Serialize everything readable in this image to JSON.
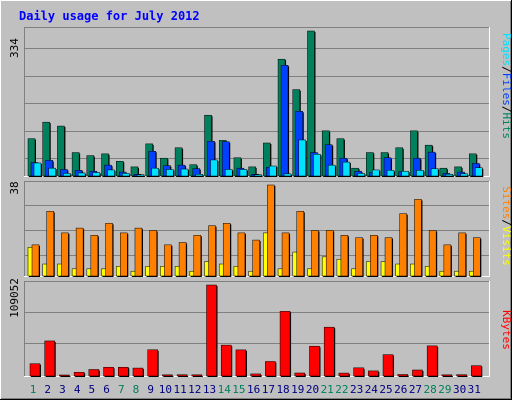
{
  "title": "Daily usage for July 2012",
  "colors": {
    "hits": "#00805C",
    "files": "#0040FF",
    "pages": "#00E0FF",
    "visits": "#FFFF00",
    "sites": "#FF8000",
    "kbytes": "#FF0000",
    "weekend_day_label": "#00805C",
    "weekday_label": "#000080",
    "background": "#C0C0C0"
  },
  "labels": {
    "hits": "Hits",
    "files": "Files",
    "pages": "Pages",
    "visits": "Visits",
    "sites": "Sites",
    "kbytes": "KBytes",
    "sep": "/"
  },
  "chart_data": [
    {
      "type": "bar",
      "title": "Daily usage for July 2012",
      "categories": [
        "1",
        "2",
        "3",
        "4",
        "5",
        "6",
        "7",
        "8",
        "9",
        "10",
        "11",
        "12",
        "13",
        "14",
        "15",
        "16",
        "17",
        "18",
        "19",
        "20",
        "21",
        "22",
        "23",
        "24",
        "25",
        "26",
        "27",
        "28",
        "29",
        "30",
        "31"
      ],
      "weekend_days": [
        1,
        7,
        8,
        14,
        15,
        21,
        22,
        28,
        29
      ],
      "ylim": [
        0,
        334
      ],
      "max_label": "334",
      "series": [
        {
          "name": "Hits",
          "values": [
            86,
            124,
            115,
            54,
            47,
            51,
            34,
            21,
            74,
            41,
            65,
            26,
            140,
            82,
            42,
            21,
            76,
            269,
            199,
            334,
            104,
            86,
            18,
            54,
            54,
            65,
            104,
            71,
            18,
            21,
            51
          ]
        },
        {
          "name": "Files",
          "values": [
            31,
            36,
            15,
            13,
            11,
            25,
            9,
            4,
            57,
            24,
            25,
            17,
            80,
            79,
            18,
            4,
            20,
            255,
            149,
            54,
            72,
            41,
            11,
            8,
            42,
            10,
            41,
            55,
            6,
            9,
            29
          ]
        },
        {
          "name": "Pages",
          "values": [
            30,
            18,
            6,
            7,
            8,
            14,
            6,
            3,
            18,
            15,
            16,
            4,
            37,
            15,
            15,
            3,
            23,
            5,
            83,
            50,
            25,
            32,
            6,
            14,
            13,
            11,
            13,
            17,
            4,
            5,
            19
          ]
        }
      ]
    },
    {
      "type": "bar",
      "ylim": [
        0,
        38
      ],
      "max_label": "38",
      "series": [
        {
          "name": "Visits",
          "values": [
            12,
            5,
            5,
            3,
            3,
            3,
            4,
            2,
            4,
            4,
            4,
            2,
            6,
            5,
            4,
            2,
            18,
            3,
            10,
            3,
            8,
            7,
            3,
            6,
            6,
            5,
            5,
            4,
            2,
            2,
            2
          ]
        },
        {
          "name": "Sites",
          "values": [
            13,
            27,
            18,
            20,
            17,
            22,
            18,
            20,
            19,
            13,
            14,
            17,
            21,
            22,
            18,
            15,
            38,
            18,
            27,
            19,
            19,
            17,
            16,
            17,
            16,
            26,
            32,
            19,
            13,
            18,
            16
          ]
        }
      ]
    },
    {
      "type": "bar",
      "ylim": [
        0,
        109052
      ],
      "max_label": "109052",
      "series": [
        {
          "name": "KBytes",
          "values": [
            14700,
            42000,
            1200,
            4500,
            7800,
            10500,
            10500,
            9500,
            31400,
            1400,
            1500,
            1400,
            109052,
            37000,
            31300,
            2500,
            17400,
            77500,
            3600,
            35700,
            58500,
            3500,
            9800,
            6100,
            25600,
            1800,
            7200,
            36100,
            1400,
            1600,
            12400
          ]
        }
      ]
    }
  ]
}
